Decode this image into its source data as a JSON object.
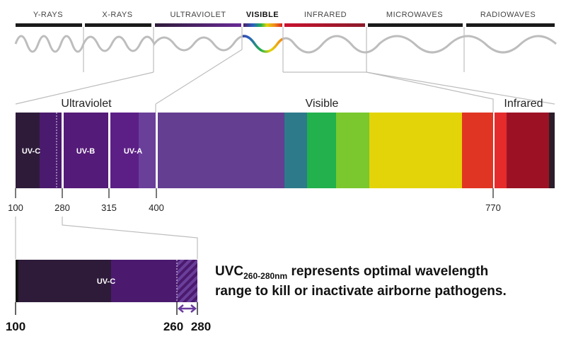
{
  "spectrum": {
    "bands": [
      {
        "label": "Y-RAYS",
        "bold": false
      },
      {
        "label": "X-RAYS",
        "bold": false
      },
      {
        "label": "ULTRAVIOLET",
        "bold": false
      },
      {
        "label": "VISIBLE",
        "bold": true
      },
      {
        "label": "INFRARED",
        "bold": false
      },
      {
        "label": "MICROWAVES",
        "bold": false
      },
      {
        "label": "RADIOWAVES",
        "bold": false
      }
    ],
    "bar_colors": {
      "default": "#1a1a1a",
      "ultraviolet": [
        "#2f1b3d",
        "#4a1f66",
        "#6a2a96"
      ],
      "visible": [
        "#5a2d8c",
        "#1e5bc6",
        "#1da85a",
        "#7cc72b",
        "#f1d600",
        "#f0901a",
        "#e03020"
      ],
      "infrared": "#b0182a"
    },
    "wave_color": "#bdbdbd"
  },
  "detail": {
    "regions": {
      "ultraviolet": "Ultraviolet",
      "visible": "Visible",
      "infrared": "Infrared"
    },
    "segments": {
      "uvc": "UV-C",
      "uvb": "UV-B",
      "uva": "UV-A"
    },
    "ticks": [
      "100",
      "280",
      "315",
      "400",
      "770"
    ],
    "colors": {
      "uvc_dark": "#2e1b3a",
      "uvc_mid": "#4a1a6e",
      "uvb": "#541b78",
      "uva": "#5c1f86",
      "uva_light": "#6a3f9a",
      "violet": "#643e91",
      "teal": "#2d7a8a",
      "green": "#22b14c",
      "lime": "#7ac82e",
      "yellow": "#e3d40a",
      "red": "#e13523",
      "ir_red": "#e52b2b",
      "ir_dark": "#9c1224",
      "end": "#2b1d2a"
    }
  },
  "zoom": {
    "segment_label": "UV-C",
    "ticks": [
      "100",
      "260",
      "280"
    ],
    "arrow_color": "#6a3b9e",
    "colors": {
      "dark": "#2e1b3a",
      "mid": "#4b1a6f",
      "hatch": "#5a2a86"
    }
  },
  "caption": {
    "prefix": "UVC",
    "subscript": "260-280nm",
    "line1_rest": " represents optimal wavelength",
    "line2": "range to kill or inactivate airborne pathogens."
  }
}
